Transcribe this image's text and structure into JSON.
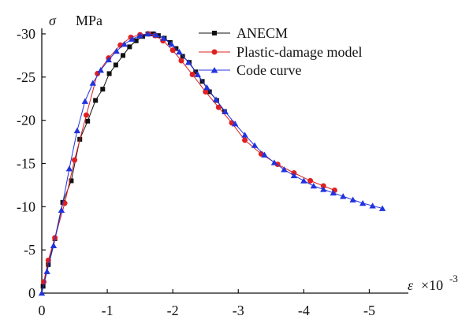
{
  "chart_data": {
    "type": "line",
    "title": "",
    "ylabel_symbol": "σ",
    "ylabel_unit": "MPa",
    "xlabel_symbol": "ε",
    "xlabel_unit_base": "×10",
    "xlabel_unit_exp": "-3",
    "xlim": [
      0,
      5.5
    ],
    "ylim": [
      0,
      31
    ],
    "x_ticks": [
      {
        "value": 0,
        "label": "0"
      },
      {
        "value": 1,
        "label": "-1"
      },
      {
        "value": 2,
        "label": "-2"
      },
      {
        "value": 3,
        "label": "-3"
      },
      {
        "value": 4,
        "label": "-4"
      },
      {
        "value": 5,
        "label": "-5"
      }
    ],
    "y_ticks": [
      {
        "value": 0,
        "label": "0"
      },
      {
        "value": 5,
        "label": "-5"
      },
      {
        "value": 10,
        "label": "-10"
      },
      {
        "value": 15,
        "label": "-15"
      },
      {
        "value": 20,
        "label": "-20"
      },
      {
        "value": 25,
        "label": "-25"
      },
      {
        "value": 30,
        "label": "-30"
      }
    ],
    "legend_position": "top-right",
    "series": [
      {
        "name": "ANECM",
        "color": "#111111",
        "marker": "square",
        "x": [
          0.02,
          0.1,
          0.2,
          0.32,
          0.45,
          0.58,
          0.7,
          0.82,
          0.93,
          1.03,
          1.13,
          1.24,
          1.34,
          1.44,
          1.54,
          1.62,
          1.7,
          1.78,
          1.87,
          1.96,
          2.05,
          2.15,
          2.25,
          2.35,
          2.45,
          2.56,
          2.67,
          2.79
        ],
        "y": [
          0.8,
          3.3,
          6.3,
          10.5,
          13.0,
          17.8,
          19.9,
          22.3,
          23.6,
          25.4,
          26.4,
          27.5,
          28.5,
          29.2,
          29.7,
          30.0,
          30.0,
          29.8,
          29.5,
          29.0,
          28.3,
          27.4,
          26.7,
          25.6,
          24.5,
          23.3,
          22.3,
          21.0
        ]
      },
      {
        "name": "Plastic-damage model",
        "color": "#e02020",
        "marker": "circle",
        "x": [
          0.03,
          0.1,
          0.2,
          0.35,
          0.5,
          0.68,
          0.85,
          1.02,
          1.2,
          1.36,
          1.5,
          1.63,
          1.73,
          1.85,
          2.0,
          2.13,
          2.3,
          2.5,
          2.7,
          2.9,
          3.1,
          3.35,
          3.6,
          3.85,
          4.1,
          4.3,
          4.47
        ],
        "y": [
          1.3,
          3.8,
          6.4,
          10.4,
          15.4,
          20.6,
          25.4,
          27.2,
          28.7,
          29.6,
          29.9,
          30.0,
          29.8,
          29.2,
          28.1,
          26.9,
          25.3,
          23.3,
          21.5,
          19.7,
          17.7,
          16.1,
          14.9,
          13.9,
          13.0,
          12.4,
          11.9
        ]
      },
      {
        "name": "Code curve",
        "color": "#2233dd",
        "marker": "triangle",
        "x": [
          0.0,
          0.08,
          0.18,
          0.3,
          0.42,
          0.54,
          0.66,
          0.78,
          0.9,
          1.02,
          1.14,
          1.26,
          1.38,
          1.5,
          1.62,
          1.74,
          1.86,
          1.98,
          2.1,
          2.24,
          2.38,
          2.52,
          2.66,
          2.8,
          2.95,
          3.1,
          3.25,
          3.4,
          3.55,
          3.7,
          3.85,
          4.0,
          4.15,
          4.3,
          4.45,
          4.6,
          4.75,
          4.9,
          5.05,
          5.2
        ],
        "y": [
          0.0,
          2.5,
          5.5,
          9.6,
          14.4,
          18.8,
          22.2,
          24.3,
          25.8,
          27.0,
          28.0,
          28.8,
          29.4,
          29.8,
          30.0,
          29.9,
          29.5,
          28.8,
          27.9,
          26.7,
          25.3,
          23.8,
          22.4,
          21.0,
          19.6,
          18.3,
          17.1,
          16.0,
          15.1,
          14.3,
          13.6,
          13.0,
          12.4,
          12.0,
          11.6,
          11.2,
          10.8,
          10.4,
          10.1,
          9.8
        ]
      }
    ]
  }
}
